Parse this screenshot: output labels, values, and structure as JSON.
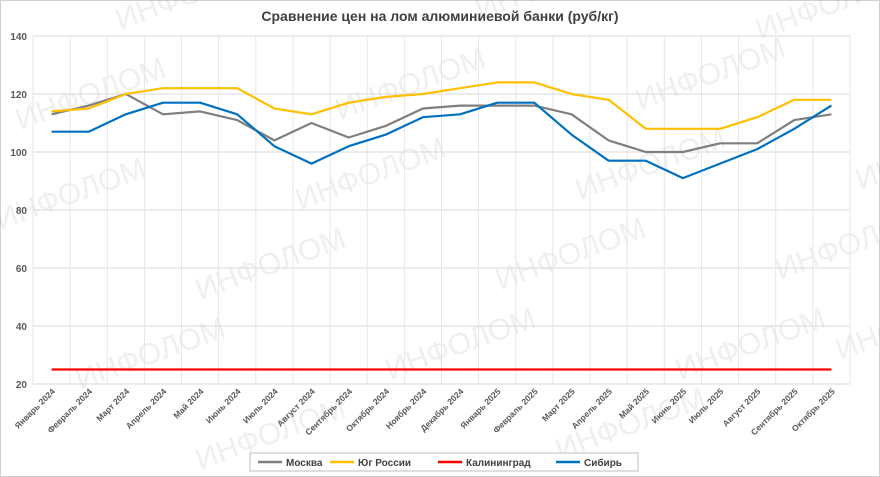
{
  "chart_data": {
    "type": "line",
    "title": "Сравнение цен на лом алюминиевой банки (руб/кг)",
    "xlabel": "",
    "ylabel": "",
    "ylim": [
      20,
      140
    ],
    "yticks": [
      20,
      40,
      60,
      80,
      100,
      120,
      140
    ],
    "grid": true,
    "legend_position": "bottom",
    "categories": [
      "Январь 2024",
      "Февраль 2024",
      "Март 2024",
      "Апрель 2024",
      "Май 2024",
      "Июнь 2024",
      "Июль 2024",
      "Август 2024",
      "Сентябрь 2024",
      "Октябрь 2024",
      "Ноябрь 2024",
      "Декабрь 2024",
      "Январь 2025",
      "Февраль 2025",
      "Март 2025",
      "Апрель 2025",
      "Май 2025",
      "Июнь 2025",
      "Июль 2025",
      "Август 2025",
      "Сентябрь 2025",
      "Октябрь 2025"
    ],
    "series": [
      {
        "name": "Москва",
        "color": "#7f7f7f",
        "values": [
          113,
          116,
          120,
          113,
          114,
          111,
          104,
          110,
          105,
          109,
          115,
          116,
          116,
          116,
          113,
          104,
          100,
          100,
          103,
          103,
          111,
          113
        ]
      },
      {
        "name": "Юг России",
        "color": "#ffc000",
        "values": [
          114,
          115,
          120,
          122,
          122,
          122,
          115,
          113,
          117,
          119,
          120,
          122,
          124,
          124,
          120,
          118,
          108,
          108,
          108,
          112,
          118,
          118
        ]
      },
      {
        "name": "Калининград",
        "color": "#ff0000",
        "values": [
          25,
          25,
          25,
          25,
          25,
          25,
          25,
          25,
          25,
          25,
          25,
          25,
          25,
          25,
          25,
          25,
          25,
          25,
          25,
          25,
          25,
          25
        ]
      },
      {
        "name": "Сибирь",
        "color": "#0070c0",
        "values": [
          107,
          107,
          113,
          117,
          117,
          113,
          102,
          96,
          102,
          106,
          112,
          113,
          117,
          117,
          106,
          97,
          97,
          91,
          96,
          101,
          108,
          116
        ]
      }
    ],
    "watermark": "ИНФОЛОМ"
  }
}
